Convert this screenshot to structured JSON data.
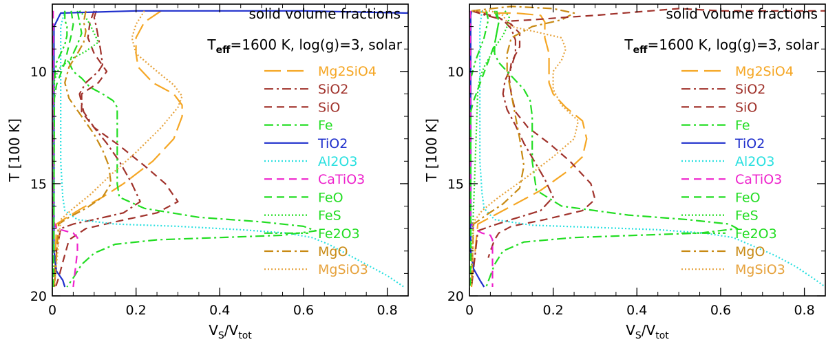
{
  "chart_data": [
    {
      "type": "line",
      "title": "solid volume fractions",
      "annotation": {
        "prefix": "T",
        "sub": "eff",
        "suffix": "=1600 K, log(g)=3, solar"
      },
      "xlabel": {
        "main": "V",
        "sub1": "S",
        "mid": "/V",
        "sub2": "tot"
      },
      "ylabel": "T [100 K]",
      "xlim": [
        0,
        0.85
      ],
      "ylim": [
        20,
        7
      ],
      "xticks": [
        0,
        0.2,
        0.4,
        0.6,
        0.8
      ],
      "xticklabels": [
        "0",
        "0.2",
        "0.4",
        "0.6",
        "0.8"
      ],
      "yticks": [
        10,
        15,
        20
      ],
      "yticklabels": [
        "10",
        "15",
        "20"
      ],
      "legend_position": "right",
      "series": [
        {
          "name": "Mg2SiO4",
          "color": "#f5a623",
          "dash": "long-dash",
          "x": [
            0.26,
            0.22,
            0.2,
            0.2,
            0.205,
            0.24,
            0.29,
            0.31,
            0.31,
            0.29,
            0.24,
            0.17,
            0.12,
            0.07,
            0.035,
            0.01,
            0.005
          ],
          "y": [
            7.3,
            7.8,
            8.5,
            9.2,
            9.8,
            10.5,
            11.0,
            11.5,
            12.0,
            13.0,
            14.0,
            15.0,
            15.6,
            16.1,
            16.5,
            16.8,
            19.6
          ]
        },
        {
          "name": "SiO2",
          "color": "#a0322b",
          "dash": "dash-dot",
          "x": [
            0.105,
            0.1,
            0.105,
            0.11,
            0.115,
            0.12,
            0.11,
            0.08,
            0.065,
            0.075,
            0.1,
            0.13,
            0.16,
            0.19,
            0.21,
            0.17,
            0.1,
            0.05,
            0.02,
            0.01,
            0.005
          ],
          "y": [
            7.3,
            7.6,
            8.0,
            8.5,
            9.0,
            9.7,
            10.0,
            10.5,
            11.0,
            11.8,
            12.5,
            13.2,
            14.0,
            15.0,
            15.8,
            16.3,
            16.6,
            16.8,
            17.0,
            18.0,
            19.6
          ]
        },
        {
          "name": "SiO",
          "color": "#a0322b",
          "dash": "dash",
          "x": [
            0.1,
            0.09,
            0.085,
            0.1,
            0.13,
            0.11,
            0.07,
            0.07,
            0.1,
            0.16,
            0.22,
            0.27,
            0.3,
            0.25,
            0.15,
            0.08,
            0.04,
            0.025,
            0.015,
            0.008
          ],
          "y": [
            7.3,
            7.8,
            8.5,
            9.2,
            10.0,
            10.5,
            11.0,
            11.8,
            12.5,
            13.3,
            14.2,
            15.0,
            15.8,
            16.3,
            16.7,
            17.0,
            17.5,
            18.5,
            19.2,
            19.6
          ]
        },
        {
          "name": "Fe",
          "color": "#22dd22",
          "dash": "dash-dot",
          "x": [
            0.06,
            0.065,
            0.07,
            0.06,
            0.05,
            0.04,
            0.05,
            0.07,
            0.09,
            0.12,
            0.145,
            0.155,
            0.155,
            0.155,
            0.16,
            0.22,
            0.35,
            0.5,
            0.6,
            0.63,
            0.55,
            0.4,
            0.25,
            0.15,
            0.1,
            0.07,
            0.05,
            0.035
          ],
          "y": [
            7.3,
            7.8,
            8.3,
            8.8,
            9.2,
            9.6,
            10.0,
            10.3,
            10.7,
            11.0,
            11.3,
            11.6,
            13.0,
            15.0,
            15.6,
            16.1,
            16.5,
            16.7,
            16.9,
            17.1,
            17.3,
            17.4,
            17.5,
            17.7,
            18.1,
            18.6,
            19.2,
            19.6
          ]
        },
        {
          "name": "TiO2",
          "color": "#1f2fcc",
          "dash": "solid",
          "x": [
            0.85,
            0.85,
            0.6,
            0.2,
            0.02,
            0.004,
            0.004,
            0.004,
            0.01,
            0.025,
            0.03
          ],
          "y": [
            7.3,
            7.4,
            7.3,
            7.3,
            7.4,
            8.0,
            14.0,
            18.0,
            18.9,
            19.3,
            19.6
          ]
        },
        {
          "name": "Al2O3",
          "color": "#2ae0e0",
          "dash": "dot",
          "x": [
            0.03,
            0.02,
            0.02,
            0.02,
            0.025,
            0.03,
            0.06,
            0.15,
            0.3,
            0.45,
            0.56,
            0.62,
            0.66,
            0.7,
            0.75,
            0.8,
            0.84
          ],
          "y": [
            7.3,
            8.0,
            10.0,
            14.0,
            15.6,
            16.2,
            16.6,
            16.8,
            16.9,
            17.05,
            17.2,
            17.4,
            17.7,
            18.1,
            18.6,
            19.1,
            19.6
          ]
        },
        {
          "name": "CaTiO3",
          "color": "#ee22cc",
          "dash": "dash",
          "x": [
            0.002,
            0.002,
            0.01,
            0.03,
            0.05,
            0.06,
            0.06,
            0.055,
            0.05
          ],
          "y": [
            7.3,
            16.6,
            17.0,
            17.1,
            17.2,
            17.4,
            18.0,
            18.8,
            19.6
          ]
        },
        {
          "name": "FeO",
          "color": "#22dd22",
          "dash": "dash",
          "x": [
            0.045,
            0.05,
            0.045,
            0.04,
            0.035,
            0.03,
            0.02,
            0.01,
            0.005,
            0.003
          ],
          "y": [
            7.3,
            7.9,
            8.4,
            8.8,
            9.2,
            9.6,
            10.1,
            10.6,
            11.2,
            19.6
          ]
        },
        {
          "name": "FeS",
          "color": "#22dd22",
          "dash": "dot",
          "x": [
            0.065,
            0.08,
            0.09,
            0.1,
            0.11,
            0.08,
            0.04,
            0.015,
            0.005,
            0.003
          ],
          "y": [
            7.3,
            7.6,
            7.9,
            8.3,
            8.7,
            9.1,
            9.5,
            9.9,
            10.4,
            19.6
          ]
        },
        {
          "name": "Fe2O3",
          "color": "#22dd22",
          "dash": "dash-dot-dot",
          "x": [
            0.03,
            0.03,
            0.035,
            0.035,
            0.03,
            0.02,
            0.01,
            0.004
          ],
          "y": [
            7.3,
            7.7,
            8.0,
            8.4,
            8.8,
            9.2,
            9.6,
            10.5
          ]
        },
        {
          "name": "MgO",
          "color": "#c88a14",
          "dash": "dash-dot",
          "x": [
            0.08,
            0.075,
            0.08,
            0.075,
            0.06,
            0.04,
            0.03,
            0.04,
            0.07,
            0.1,
            0.12,
            0.135,
            0.14,
            0.12,
            0.08,
            0.04,
            0.015,
            0.005
          ],
          "y": [
            7.3,
            7.8,
            8.2,
            8.7,
            9.2,
            9.8,
            10.5,
            11.2,
            12.0,
            12.8,
            13.5,
            14.2,
            15.0,
            15.6,
            16.1,
            16.5,
            16.8,
            19.6
          ]
        },
        {
          "name": "MgSiO3",
          "color": "#e6a23c",
          "dash": "dot",
          "x": [
            0.22,
            0.2,
            0.19,
            0.2,
            0.25,
            0.29,
            0.31,
            0.3,
            0.26,
            0.2,
            0.14,
            0.09,
            0.05,
            0.02,
            0.005
          ],
          "y": [
            7.3,
            7.9,
            8.5,
            9.2,
            10.0,
            10.6,
            11.1,
            11.6,
            12.5,
            13.6,
            14.6,
            15.5,
            16.1,
            16.6,
            19.6
          ]
        }
      ]
    },
    {
      "type": "line",
      "title": "solid volume fractions",
      "annotation": {
        "prefix": "T",
        "sub": "eff",
        "suffix": "=1600 K, log(g)=3, solar"
      },
      "xlabel": {
        "main": "V",
        "sub1": "S",
        "mid": "/V",
        "sub2": "tot"
      },
      "ylabel": "T [100 K]",
      "xlim": [
        0,
        0.85
      ],
      "ylim": [
        20,
        7
      ],
      "xticks": [
        0,
        0.2,
        0.4,
        0.6,
        0.8
      ],
      "xticklabels": [
        "0",
        "0.2",
        "0.4",
        "0.6",
        "0.8"
      ],
      "yticks": [
        10,
        15,
        20
      ],
      "yticklabels": [
        "10",
        "15",
        "20"
      ],
      "legend_position": "right",
      "series": [
        {
          "name": "Mg2SiO4",
          "color": "#f5a623",
          "dash": "long-dash",
          "x": [
            0.005,
            0.05,
            0.11,
            0.17,
            0.18,
            0.18,
            0.19,
            0.19,
            0.19,
            0.2,
            0.23,
            0.27,
            0.28,
            0.27,
            0.23,
            0.17,
            0.11,
            0.06,
            0.02,
            0.005
          ],
          "y": [
            7.3,
            7.4,
            7.4,
            7.5,
            7.8,
            8.5,
            9.2,
            10.0,
            10.5,
            11.0,
            11.6,
            12.2,
            13.0,
            13.8,
            14.5,
            15.3,
            15.9,
            16.4,
            16.8,
            19.6
          ]
        },
        {
          "name": "SiO2",
          "color": "#a0322b",
          "dash": "dash-dot",
          "x": [
            0.005,
            0.04,
            0.08,
            0.1,
            0.11,
            0.11,
            0.1,
            0.085,
            0.08,
            0.09,
            0.11,
            0.13,
            0.155,
            0.18,
            0.2,
            0.17,
            0.1,
            0.05,
            0.02,
            0.005
          ],
          "y": [
            7.3,
            7.5,
            7.7,
            8.1,
            8.6,
            9.2,
            9.8,
            10.4,
            11.0,
            11.7,
            12.4,
            13.2,
            14.0,
            14.8,
            15.6,
            16.2,
            16.6,
            16.9,
            17.1,
            19.6
          ]
        },
        {
          "name": "SiO",
          "color": "#a0322b",
          "dash": "dash",
          "x": [
            0.005,
            0.03,
            0.07,
            0.1,
            0.12,
            0.12,
            0.1,
            0.095,
            0.1,
            0.11,
            0.14,
            0.19,
            0.24,
            0.29,
            0.3,
            0.27,
            0.18,
            0.1,
            0.07,
            0.06,
            0.05,
            0.045
          ],
          "y": [
            7.3,
            7.4,
            7.6,
            7.9,
            8.3,
            8.9,
            9.6,
            10.3,
            11.0,
            11.8,
            12.5,
            13.2,
            14.0,
            15.0,
            15.7,
            16.2,
            16.6,
            16.9,
            17.2,
            17.5,
            18.0,
            18.3
          ]
        },
        {
          "name": "Fe",
          "color": "#22dd22",
          "dash": "dash-dot",
          "x": [
            0.065,
            0.07,
            0.065,
            0.06,
            0.06,
            0.07,
            0.09,
            0.11,
            0.13,
            0.145,
            0.15,
            0.15,
            0.16,
            0.22,
            0.38,
            0.52,
            0.62,
            0.64,
            0.55,
            0.4,
            0.25,
            0.13,
            0.08,
            0.06,
            0.05,
            0.04
          ],
          "y": [
            7.3,
            7.8,
            8.3,
            8.8,
            9.2,
            9.6,
            10.0,
            10.4,
            10.8,
            11.3,
            12.0,
            14.0,
            15.3,
            16.0,
            16.4,
            16.6,
            16.8,
            17.0,
            17.2,
            17.3,
            17.4,
            17.6,
            18.0,
            18.6,
            19.1,
            19.6
          ]
        },
        {
          "name": "TiO2",
          "color": "#1f2fcc",
          "dash": "solid",
          "x": [
            0.005,
            0.003,
            0.003,
            0.003,
            0.01,
            0.025,
            0.035
          ],
          "y": [
            7.3,
            7.5,
            12.0,
            18.0,
            18.8,
            19.3,
            19.6
          ]
        },
        {
          "name": "Al2O3",
          "color": "#2ae0e0",
          "dash": "dot",
          "x": [
            0.03,
            0.025,
            0.025,
            0.025,
            0.03,
            0.035,
            0.06,
            0.15,
            0.3,
            0.45,
            0.56,
            0.63,
            0.68,
            0.73,
            0.78,
            0.82,
            0.85
          ],
          "y": [
            7.3,
            8.0,
            10.0,
            14.0,
            15.4,
            16.1,
            16.6,
            16.85,
            16.95,
            17.05,
            17.2,
            17.4,
            17.8,
            18.2,
            18.7,
            19.2,
            19.6
          ]
        },
        {
          "name": "CaTiO3",
          "color": "#ee22cc",
          "dash": "dash",
          "x": [
            0.002,
            0.002,
            0.01,
            0.03,
            0.05,
            0.055,
            0.055,
            0.055
          ],
          "y": [
            7.3,
            16.6,
            17.0,
            17.2,
            17.3,
            17.5,
            18.2,
            19.6
          ]
        },
        {
          "name": "FeO",
          "color": "#22dd22",
          "dash": "dash",
          "x": [
            0.06,
            0.07,
            0.065,
            0.06,
            0.05,
            0.04,
            0.03,
            0.02,
            0.01,
            0.003,
            0.003
          ],
          "y": [
            7.3,
            7.8,
            8.3,
            8.8,
            9.3,
            9.8,
            10.3,
            10.8,
            11.3,
            11.8,
            19.6
          ]
        },
        {
          "name": "FeS",
          "color": "#22dd22",
          "dash": "dot",
          "x": [
            0.085,
            0.095,
            0.09,
            0.08,
            0.065,
            0.05,
            0.035,
            0.025,
            0.02,
            0.003
          ],
          "y": [
            7.3,
            7.6,
            8.0,
            8.4,
            8.8,
            9.3,
            9.8,
            10.3,
            10.8,
            19.6
          ]
        },
        {
          "name": "Fe2O3",
          "color": "#22dd22",
          "dash": "dash-dot-dot",
          "x": [
            0.04,
            0.045,
            0.04,
            0.035,
            0.025,
            0.015,
            0.005
          ],
          "y": [
            7.3,
            7.7,
            8.1,
            8.5,
            9.0,
            9.5,
            10.2
          ]
        },
        {
          "name": "MgO",
          "color": "#c88a14",
          "dash": "dash-dot",
          "x": [
            0.005,
            0.1,
            0.2,
            0.25,
            0.22,
            0.15,
            0.1,
            0.09,
            0.09,
            0.1,
            0.11,
            0.12,
            0.13,
            0.12,
            0.08,
            0.04,
            0.01,
            0.005
          ],
          "y": [
            7.3,
            7.1,
            7.2,
            7.4,
            7.7,
            8.0,
            8.5,
            9.2,
            10.0,
            11.0,
            12.0,
            13.0,
            14.2,
            15.2,
            15.9,
            16.4,
            16.8,
            19.6
          ]
        },
        {
          "name": "MgSiO3",
          "color": "#e6a23c",
          "dash": "dot",
          "x": [
            0.005,
            0.05,
            0.08,
            0.09,
            0.1,
            0.15,
            0.22,
            0.23,
            0.22,
            0.2,
            0.2,
            0.22,
            0.26,
            0.25,
            0.2,
            0.13,
            0.07,
            0.03,
            0.01,
            0.005
          ],
          "y": [
            7.3,
            7.3,
            7.5,
            7.8,
            8.0,
            8.2,
            8.5,
            9.0,
            9.5,
            10.0,
            10.8,
            11.5,
            12.2,
            13.0,
            13.8,
            14.8,
            15.6,
            16.2,
            16.7,
            19.6
          ]
        }
      ],
      "extra_line": {
        "color": "#a0322b",
        "dash": "dash",
        "x": [
          0.1,
          0.15,
          0.22,
          0.3,
          0.4,
          0.5,
          0.6,
          0.7,
          0.8,
          0.85
        ],
        "y": [
          7.75,
          7.7,
          7.6,
          7.5,
          7.35,
          7.2,
          7.3,
          7.3,
          7.3,
          7.3
        ]
      }
    }
  ]
}
